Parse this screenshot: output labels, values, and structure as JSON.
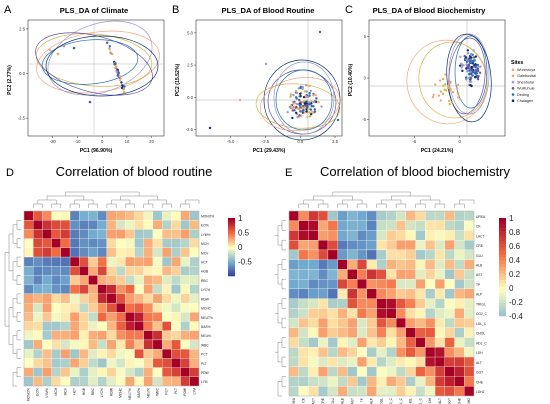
{
  "figure": {
    "panels": [
      "A",
      "B",
      "C",
      "D",
      "E"
    ]
  },
  "chart_data": [
    {
      "panel": "A",
      "type": "scatter",
      "title": "PLS_DA of Climate",
      "xlabel": "PC1 (96.90%)",
      "ylabel": "PC2 (2.77%)",
      "xlim": [
        -30,
        25
      ],
      "ylim": [
        -3.5,
        3
      ],
      "xticks": [
        "-20",
        "-10",
        "0",
        "10",
        "20"
      ],
      "yticks": [
        "-2.5",
        "0.0",
        "2.5"
      ]
    },
    {
      "panel": "B",
      "type": "scatter",
      "title": "PLS_DA of Blood Routine",
      "xlabel": "PC1 (29.43%)",
      "ylabel": "PC2 (15.52%)",
      "xlim": [
        -7.5,
        3
      ],
      "ylim": [
        -3,
        6
      ],
      "xticks": [
        "-5.0",
        "-2.5",
        "0.0",
        "2.5"
      ],
      "yticks": [
        "-2.5",
        "0.0",
        "2.5",
        "5.0"
      ]
    },
    {
      "panel": "C",
      "type": "scatter",
      "title": "PLS_DA of Blood Biochemistry",
      "xlabel": "PC1 (24.21%)",
      "ylabel": "PC2 (10.40%)",
      "xlim": [
        -10,
        5
      ],
      "ylim": [
        -7,
        7
      ],
      "xticks": [
        "-5",
        "0"
      ],
      "yticks": [
        "-5",
        "0",
        "5"
      ]
    },
    {
      "panel": "D",
      "type": "heatmap",
      "title": "Correlation of blood routine",
      "rows": [
        "MONO%",
        "EO%",
        "LYM%",
        "MCH",
        "MCV",
        "HCT",
        "HGB",
        "RBC",
        "LYC%",
        "RDW",
        "MCHC",
        "NEUT%",
        "BAS%",
        "NEU%",
        "WBC",
        "PCT",
        "PLT",
        "PDW",
        "LYM"
      ],
      "colorbar": {
        "ticks": [
          "1",
          "0.5",
          "0",
          "-0.5"
        ],
        "range": [
          -1,
          1
        ]
      }
    },
    {
      "panel": "E",
      "type": "heatmap",
      "title": "Correlation of blood biochemistry",
      "rows": [
        "UREA",
        "CK",
        "LACT",
        "CRE",
        "GLU",
        "ALB",
        "AST",
        "TP",
        "ALP",
        "TRIGL",
        "CO2_C",
        "LDL_C",
        "CHOL",
        "HDL_C",
        "LDH",
        "ALT",
        "GGT",
        "CHE",
        "LDH2"
      ],
      "colorbar": {
        "ticks": [
          "1",
          "0.8",
          "0.6",
          "0.4",
          "0.2",
          "0",
          "-0.2",
          "-0.4"
        ],
        "range": [
          -0.4,
          1
        ]
      }
    }
  ],
  "legend": {
    "title": "Sites",
    "items": [
      {
        "label": "Wurentuya",
        "color": "#f4a582"
      },
      {
        "label": "Galebusitai",
        "color": "#d6b44a"
      },
      {
        "label": "Shenhulai",
        "color": "#9e9ac8"
      },
      {
        "label": "Wulituhule",
        "color": "#6a51a3"
      },
      {
        "label": "Deding",
        "color": "#2171b5"
      },
      {
        "label": "Chalagen",
        "color": "#08306b"
      }
    ]
  }
}
